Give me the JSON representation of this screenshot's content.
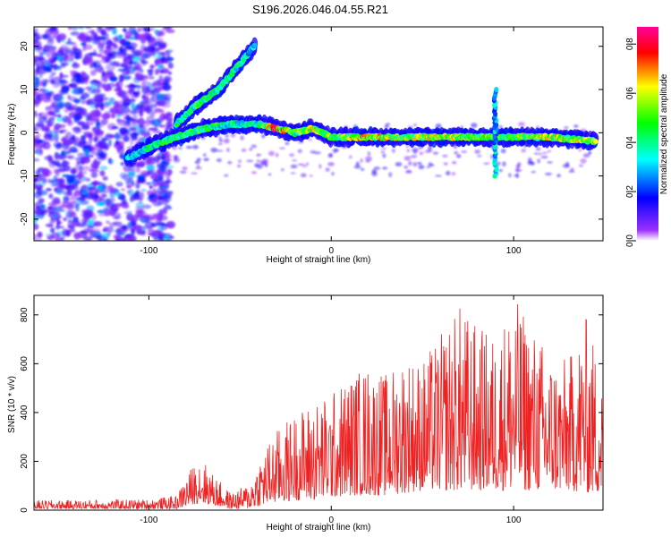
{
  "title": "S196.2026.046.04.55.R21",
  "chart_data": [
    {
      "type": "heatmap",
      "name": "spectrogram",
      "xlabel": "Height of straight line (km)",
      "ylabel": "Frequency (Hz)",
      "xlim": [
        -163,
        149
      ],
      "ylim": [
        -25,
        24.5
      ],
      "xticks": [
        -100,
        0,
        100
      ],
      "yticks": [
        -20,
        -10,
        0,
        10,
        20
      ],
      "colorbar": {
        "label": "Normalized spectral amplitude",
        "range": [
          0,
          0.87
        ],
        "ticks": [
          "0.0",
          "0.2",
          "0.4",
          "0.6",
          "0.8"
        ],
        "stops": [
          "#ffffff",
          "#9b30ff",
          "#0000ff",
          "#00ffff",
          "#00ff00",
          "#ffff00",
          "#ff0000",
          "#ff0099"
        ]
      },
      "ridges": [
        {
          "name": "main-trace",
          "x": [
            -112,
            -98,
            -85,
            -70,
            -55,
            -40,
            -30,
            -20,
            -10,
            0,
            20,
            40,
            60,
            80,
            100,
            120,
            145
          ],
          "y": [
            -6,
            -3,
            -1,
            1,
            2,
            2,
            1,
            0,
            1,
            -1,
            -1,
            -1,
            -1,
            -1,
            -1,
            -1,
            -2
          ],
          "amplitude": [
            0.35,
            0.45,
            0.5,
            0.5,
            0.45,
            0.45,
            0.85,
            0.5,
            0.65,
            0.55,
            0.7,
            0.6,
            0.65,
            0.6,
            0.6,
            0.65,
            0.6
          ]
        },
        {
          "name": "upper-branch",
          "x": [
            -85,
            -75,
            -62,
            -50,
            -42
          ],
          "y": [
            2,
            6,
            10,
            16,
            20
          ],
          "amplitude": [
            0.45,
            0.5,
            0.45,
            0.5,
            0.3
          ]
        },
        {
          "name": "spike-90km",
          "x": [
            90,
            90
          ],
          "y": [
            -10,
            10
          ],
          "amplitude": [
            0.35,
            0.3
          ]
        }
      ]
    },
    {
      "type": "line",
      "name": "snr",
      "xlabel": "Height of straight line (km)",
      "ylabel": "SNR (10 * v/v)",
      "xlim": [
        -163,
        149
      ],
      "ylim": [
        0,
        880
      ],
      "xticks": [
        -100,
        0,
        100
      ],
      "yticks": [
        0,
        200,
        400,
        600,
        800
      ],
      "color": "#ee2222",
      "envelope": {
        "x": [
          -163,
          -100,
          -85,
          -78,
          -72,
          -65,
          -55,
          -45,
          -38,
          -30,
          -20,
          -10,
          0,
          10,
          20,
          30,
          40,
          50,
          60,
          70,
          80,
          90,
          100,
          110,
          120,
          130,
          140,
          149
        ],
        "min": [
          5,
          5,
          5,
          20,
          30,
          20,
          5,
          8,
          20,
          30,
          40,
          40,
          50,
          60,
          60,
          60,
          70,
          80,
          80,
          80,
          80,
          80,
          80,
          80,
          80,
          80,
          70,
          70
        ],
        "max": [
          40,
          45,
          60,
          160,
          230,
          150,
          70,
          110,
          240,
          330,
          400,
          450,
          480,
          560,
          600,
          560,
          650,
          620,
          720,
          850,
          760,
          720,
          880,
          760,
          650,
          620,
          800,
          560
        ]
      }
    }
  ]
}
